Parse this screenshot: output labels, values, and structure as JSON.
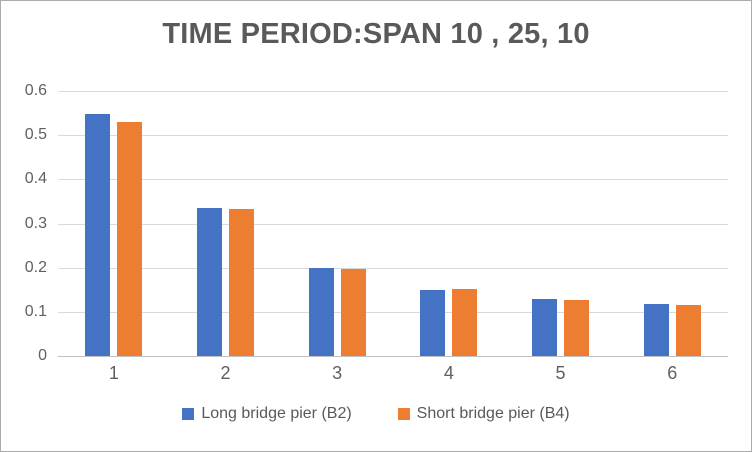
{
  "chart_data": {
    "type": "bar",
    "title": "TIME PERIOD:SPAN 10 , 25, 10",
    "categories": [
      "1",
      "2",
      "3",
      "4",
      "5",
      "6"
    ],
    "series": [
      {
        "name": "Long bridge pier (B2)",
        "color": "#4472C4",
        "values": [
          0.547,
          0.334,
          0.2,
          0.15,
          0.129,
          0.118
        ]
      },
      {
        "name": "Short bridge pier (B4)",
        "color": "#ED7D31",
        "values": [
          0.529,
          0.333,
          0.196,
          0.151,
          0.127,
          0.115
        ]
      }
    ],
    "xlabel": "",
    "ylabel": "",
    "ylim": [
      0,
      0.6
    ],
    "yticks": [
      0.6,
      0.5,
      0.4,
      0.3,
      0.2,
      0.1,
      0
    ],
    "ytick_labels": [
      "0.6",
      "0.5",
      "0.4",
      "0.3",
      "0.2",
      "0.1",
      "0"
    ],
    "grid": true,
    "legend_position": "bottom",
    "colors": {
      "title_text": "#595959",
      "tick_text": "#606060",
      "gridline": "#d9d9d9",
      "axis_line": "#bfbfbf",
      "background": "#ffffff",
      "border": "#acacac"
    }
  }
}
